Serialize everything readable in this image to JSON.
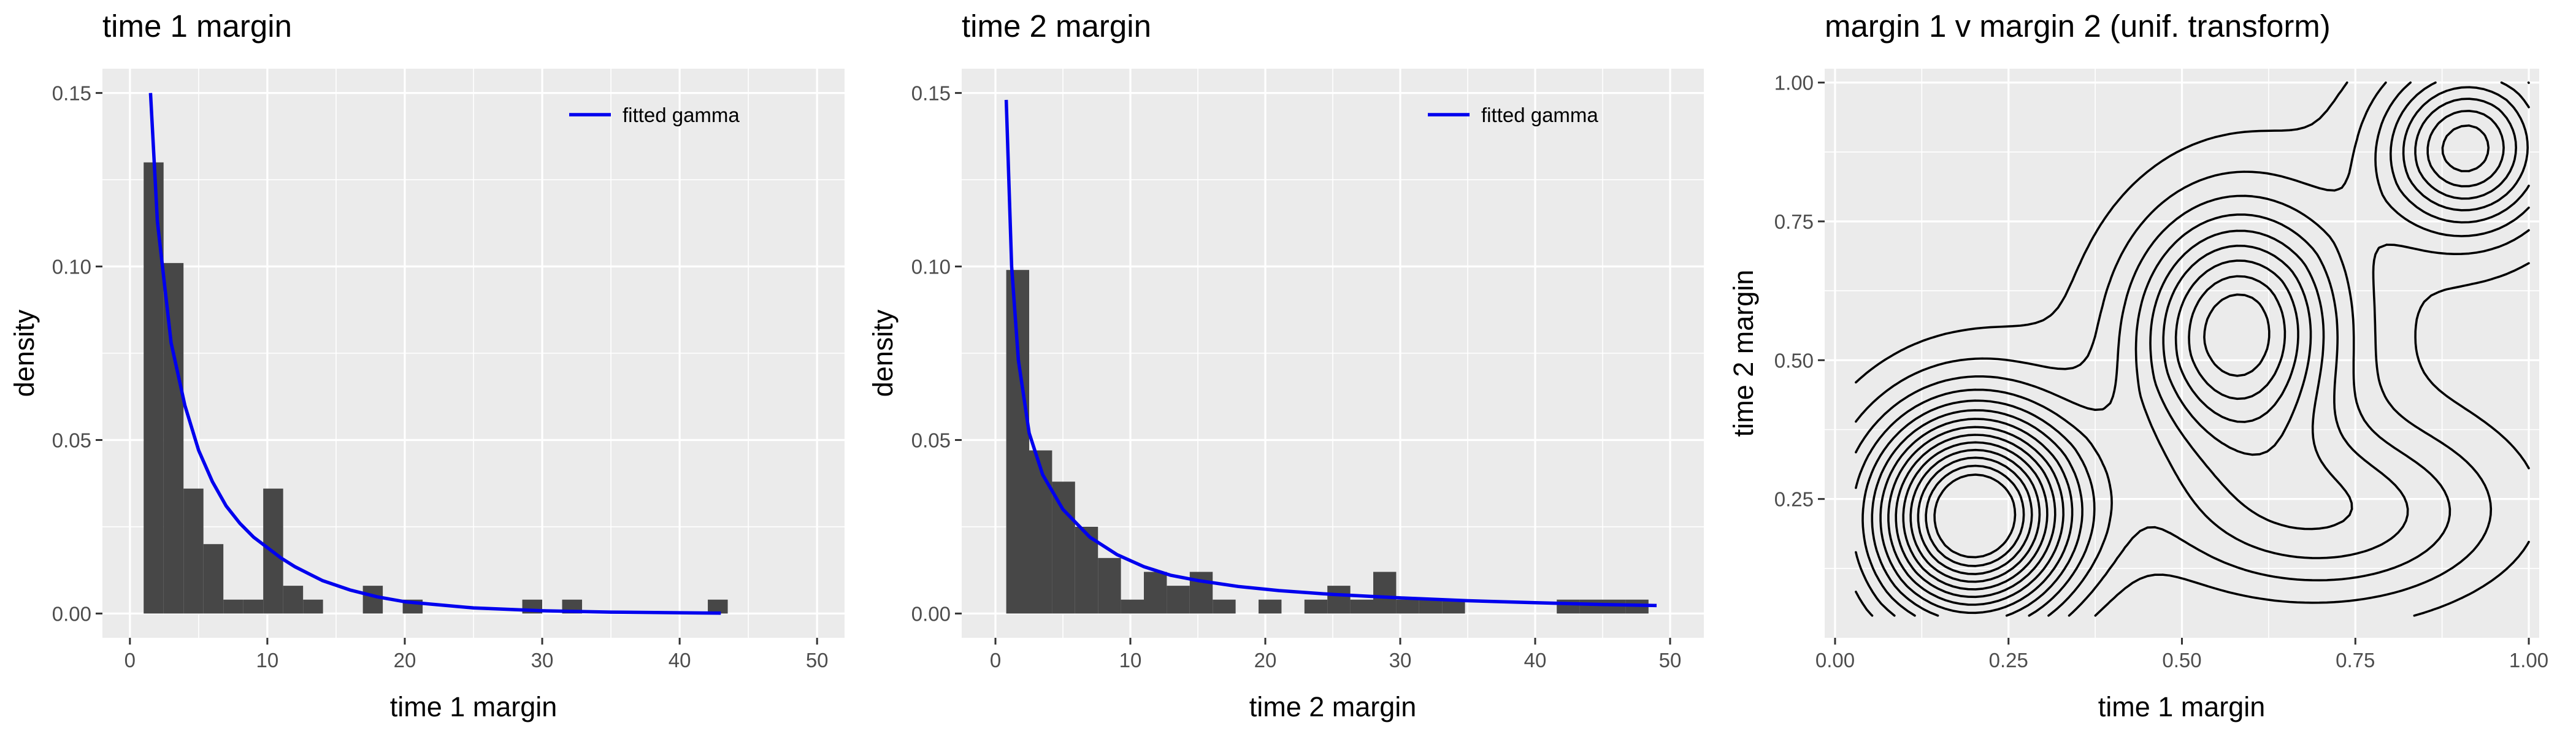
{
  "chart_data": [
    {
      "type": "bar",
      "title": "time 1 margin",
      "xlabel": "time 1 margin",
      "ylabel": "density",
      "xlim": [
        -2,
        52
      ],
      "ylim": [
        -0.007,
        0.157
      ],
      "x_ticks": [
        0,
        10,
        20,
        30,
        40,
        50
      ],
      "y_ticks": [
        0.0,
        0.05,
        0.1,
        0.15
      ],
      "x_tick_labels": [
        "0",
        "10",
        "20",
        "30",
        "40",
        "50"
      ],
      "y_tick_labels": [
        "0.00",
        "0.05",
        "0.10",
        "0.15"
      ],
      "grid": true,
      "legend_position": "top-right",
      "bin_width": 1.45,
      "histogram": {
        "bin_start": [
          1.0,
          2.45,
          3.9,
          5.35,
          6.8,
          8.25,
          9.7,
          11.15,
          12.6,
          16.95,
          19.85,
          28.55,
          31.45,
          42.05
        ],
        "density": [
          0.13,
          0.101,
          0.036,
          0.02,
          0.004,
          0.004,
          0.036,
          0.008,
          0.004,
          0.008,
          0.004,
          0.004,
          0.004,
          0.004
        ]
      },
      "series": [
        {
          "name": "fitted gamma",
          "color": "#0000ee",
          "x": [
            1.5,
            2,
            3,
            4,
            5,
            6,
            7,
            8,
            9,
            10,
            11,
            12,
            14,
            16,
            18,
            20,
            25,
            30,
            35,
            43
          ],
          "y": [
            0.15,
            0.113,
            0.078,
            0.06,
            0.047,
            0.038,
            0.031,
            0.026,
            0.022,
            0.019,
            0.016,
            0.0135,
            0.0095,
            0.0068,
            0.0048,
            0.0034,
            0.0016,
            0.0008,
            0.0004,
            0.0001
          ]
        }
      ]
    },
    {
      "type": "bar",
      "title": "time 2 margin",
      "xlabel": "time 2 margin",
      "ylabel": "density",
      "xlim": [
        -2.5,
        52.5
      ],
      "ylim": [
        -0.007,
        0.157
      ],
      "x_ticks": [
        0,
        10,
        20,
        30,
        40,
        50
      ],
      "y_ticks": [
        0.0,
        0.05,
        0.1,
        0.15
      ],
      "x_tick_labels": [
        "0",
        "10",
        "20",
        "30",
        "40",
        "50"
      ],
      "y_tick_labels": [
        "0.00",
        "0.05",
        "0.10",
        "0.15"
      ],
      "grid": true,
      "legend_position": "top-right",
      "bin_width": 1.7,
      "histogram": {
        "bin_start": [
          0.8,
          2.5,
          4.2,
          5.9,
          7.6,
          9.3,
          11.0,
          12.7,
          14.4,
          16.1,
          19.5,
          22.9,
          24.6,
          26.3,
          28.0,
          29.7,
          31.4,
          33.1,
          41.6,
          43.3,
          45.0,
          46.7
        ],
        "density": [
          0.099,
          0.047,
          0.038,
          0.025,
          0.016,
          0.004,
          0.012,
          0.008,
          0.012,
          0.004,
          0.004,
          0.004,
          0.008,
          0.004,
          0.012,
          0.004,
          0.004,
          0.004,
          0.004,
          0.004,
          0.004,
          0.004
        ]
      },
      "series": [
        {
          "name": "fitted gamma",
          "color": "#0000ee",
          "x": [
            0.8,
            1.2,
            1.7,
            2.5,
            3.5,
            5,
            7,
            9,
            11,
            13,
            15,
            18,
            21,
            25,
            30,
            35,
            40,
            45,
            49
          ],
          "y": [
            0.148,
            0.1,
            0.073,
            0.052,
            0.04,
            0.03,
            0.022,
            0.017,
            0.0135,
            0.011,
            0.0095,
            0.0078,
            0.0066,
            0.0055,
            0.0045,
            0.0037,
            0.0031,
            0.0026,
            0.0023
          ]
        }
      ]
    },
    {
      "type": "contour",
      "title": "margin 1 v margin 2 (unif. transform)",
      "xlabel": "time 1 margin",
      "ylabel": "time 2 margin",
      "xlim": [
        -0.015,
        1.015
      ],
      "ylim": [
        0.0,
        1.025
      ],
      "x_ticks": [
        0.0,
        0.25,
        0.5,
        0.75,
        1.0
      ],
      "y_ticks": [
        0.25,
        0.5,
        0.75,
        1.0
      ],
      "x_tick_labels": [
        "0.00",
        "0.25",
        "0.50",
        "0.75",
        "1.00"
      ],
      "y_tick_labels": [
        "0.25",
        "0.50",
        "0.75",
        "1.00"
      ],
      "grid": true,
      "color": "#000000",
      "modes": [
        {
          "x": 0.2,
          "y": 0.22
        },
        {
          "x": 0.59,
          "y": 0.55
        },
        {
          "x": 0.91,
          "y": 0.88
        }
      ]
    }
  ]
}
